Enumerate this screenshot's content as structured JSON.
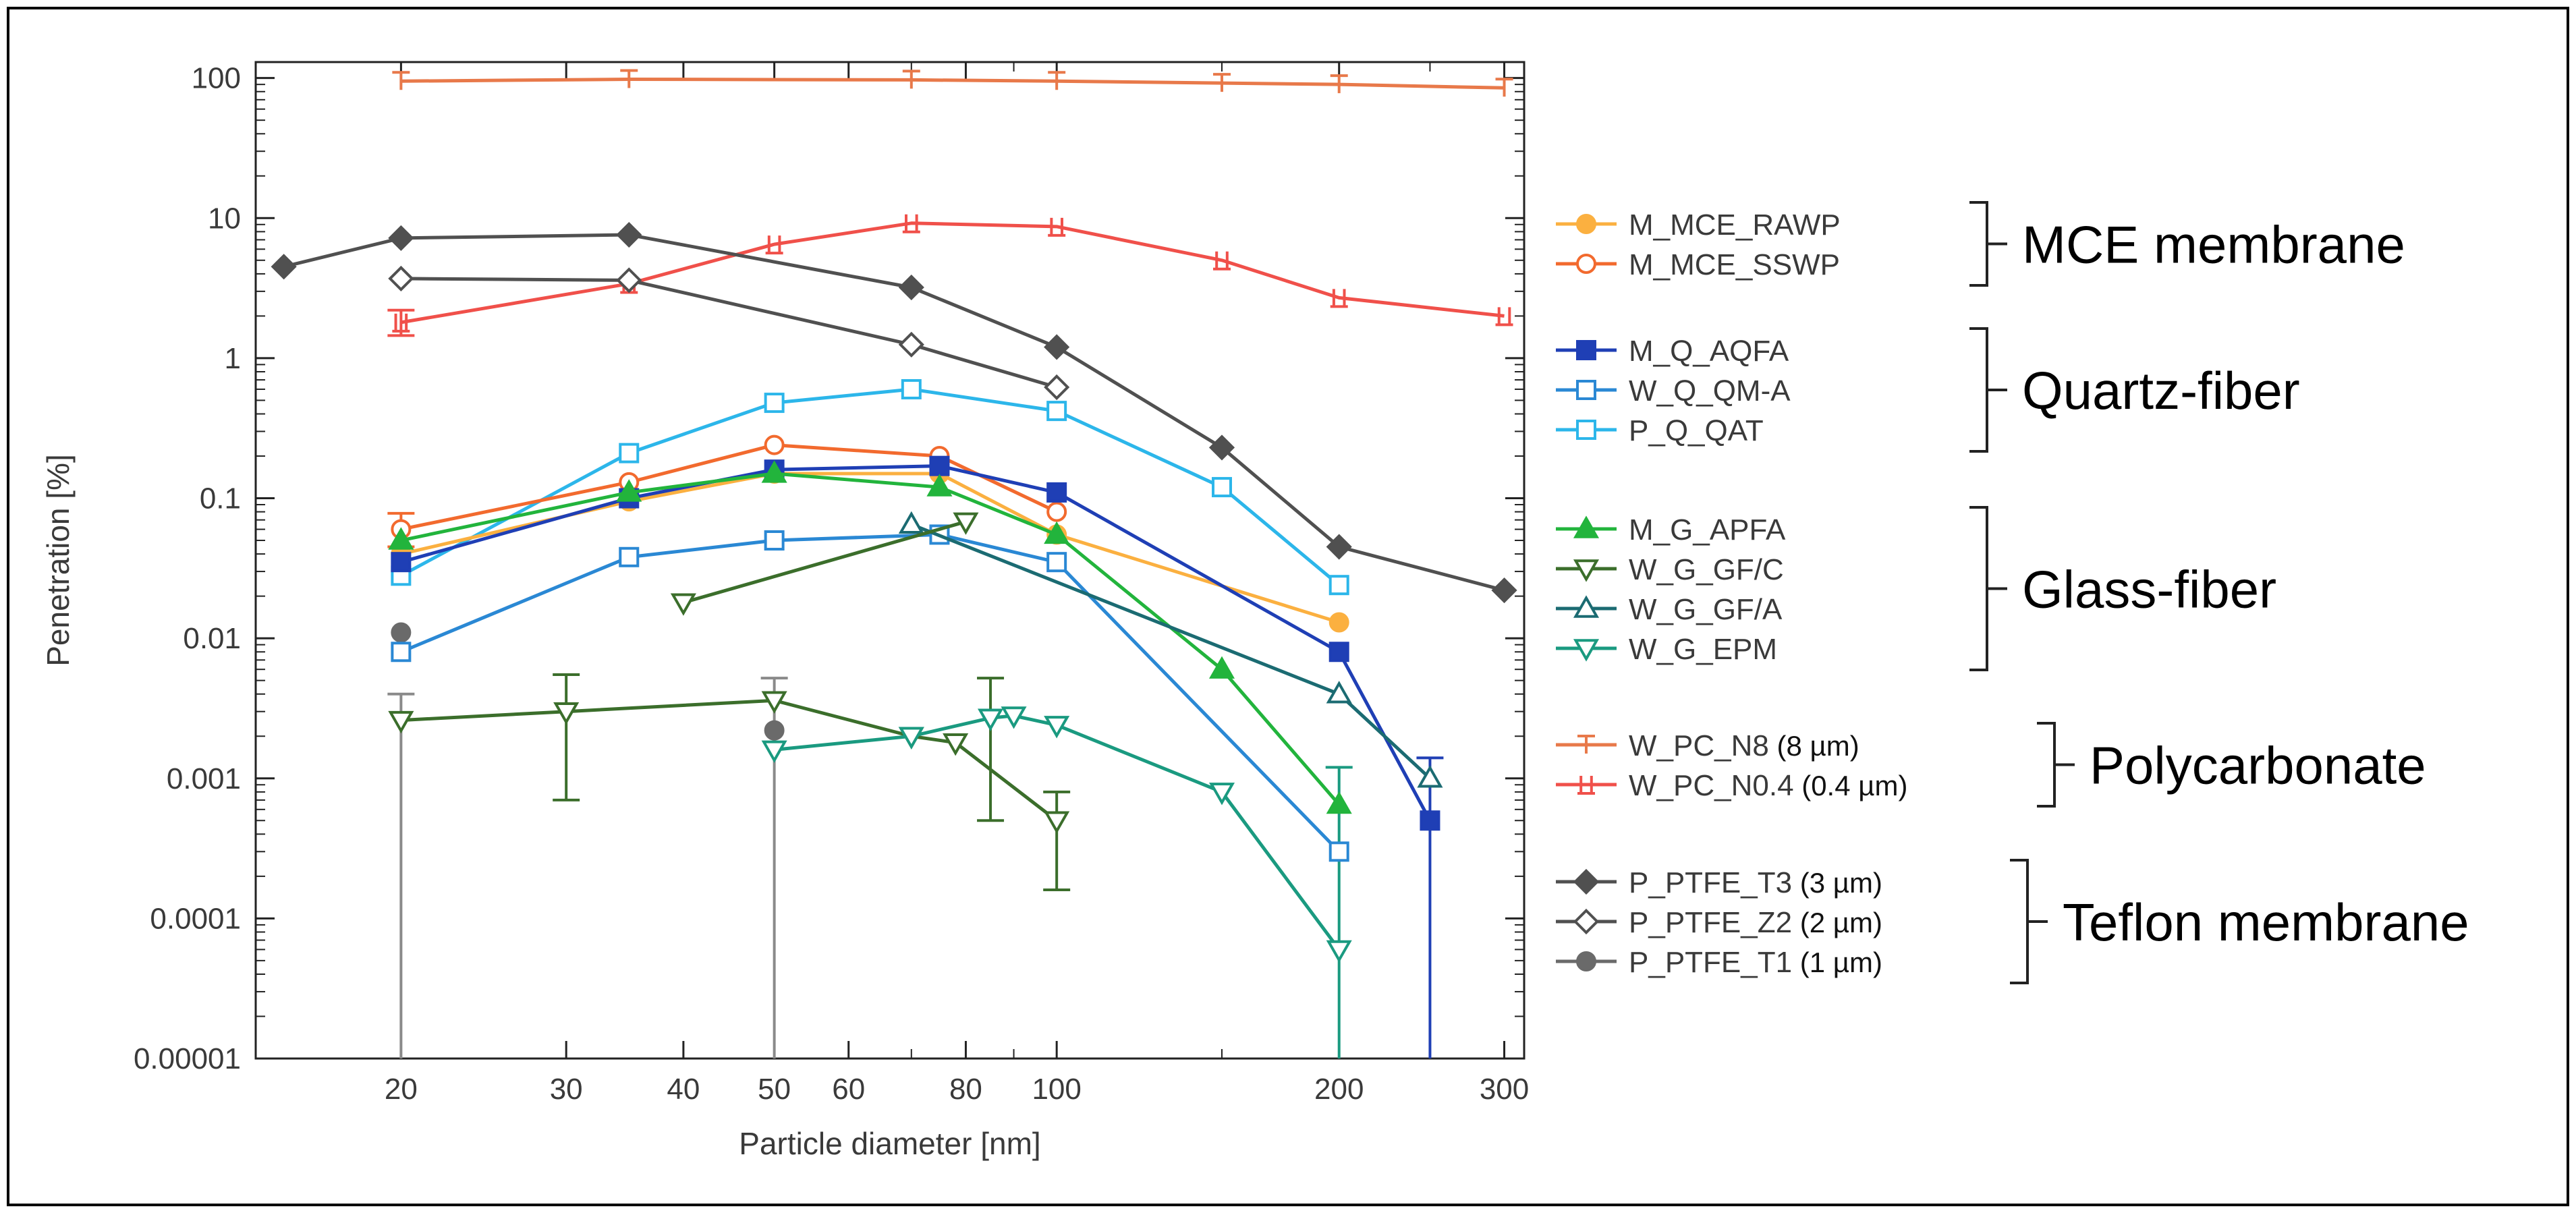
{
  "chart_data": {
    "type": "line",
    "xscale": "log",
    "yscale": "log",
    "xlabel": "Particle diameter [nm]",
    "ylabel": "Penetration [%]",
    "xlim": [
      14,
      315
    ],
    "ylim": [
      1e-05,
      130
    ],
    "xticks": [
      20,
      30,
      40,
      50,
      60,
      80,
      100,
      200,
      300
    ],
    "yticks": [
      {
        "v": 100,
        "label": "100"
      },
      {
        "v": 10,
        "label": "10"
      },
      {
        "v": 1,
        "label": "1"
      },
      {
        "v": 0.1,
        "label": "0.1"
      },
      {
        "v": 0.01,
        "label": "0.01"
      },
      {
        "v": 0.001,
        "label": "0.001"
      },
      {
        "v": 0.0001,
        "label": "0.0001"
      },
      {
        "v": 1e-05,
        "label": "0.00001"
      }
    ],
    "series": [
      {
        "name": "W_PC_N8",
        "suffix": " (8 µm)",
        "color": "#e8794a",
        "marker": "bar-t",
        "fill": "none",
        "x": [
          20,
          35,
          70,
          100,
          150,
          200,
          300
        ],
        "y": [
          95,
          98,
          97,
          95,
          92,
          90,
          85
        ]
      },
      {
        "name": "W_PC_N0.4",
        "suffix": " (0.4 µm)",
        "color": "#f0504a",
        "marker": "bar-i",
        "fill": "none",
        "x": [
          20,
          35,
          50,
          70,
          100,
          150,
          200,
          300
        ],
        "y": [
          1.8,
          3.4,
          6.5,
          9.2,
          8.7,
          5.0,
          2.7,
          2.0
        ]
      },
      {
        "name": "P_PTFE_T3",
        "suffix": " (3 µm)",
        "color": "#505050",
        "marker": "diamond",
        "fill": "#505050",
        "x": [
          15,
          20,
          35,
          70,
          100,
          150,
          200,
          300
        ],
        "y": [
          4.5,
          7.2,
          7.6,
          3.2,
          1.2,
          0.23,
          0.045,
          0.022
        ]
      },
      {
        "name": "P_PTFE_Z2",
        "suffix": " (2 µm)",
        "color": "#505050",
        "marker": "diamond",
        "fill": "#ffffff",
        "x": [
          20,
          35,
          70,
          100
        ],
        "y": [
          3.7,
          3.6,
          1.25,
          0.62
        ]
      },
      {
        "name": "P_PTFE_T1",
        "suffix": " (1 µm)",
        "color": "#6a6a6a",
        "marker": "circle",
        "fill": "#6a6a6a",
        "noline": true,
        "x": [
          20,
          50
        ],
        "y": [
          0.011,
          0.0022
        ]
      },
      {
        "name": "P_Q_QAT",
        "suffix": "",
        "color": "#2cb6ea",
        "marker": "square",
        "fill": "#ffffff",
        "x": [
          20,
          35,
          50,
          70,
          100,
          150,
          200
        ],
        "y": [
          0.028,
          0.21,
          0.48,
          0.6,
          0.42,
          0.12,
          0.024
        ]
      },
      {
        "name": "M_MCE_SSWP",
        "suffix": "",
        "color": "#f26a2e",
        "marker": "circle",
        "fill": "#ffffff",
        "x": [
          20,
          35,
          50,
          75,
          100
        ],
        "y": [
          0.06,
          0.13,
          0.24,
          0.2,
          0.08
        ]
      },
      {
        "name": "M_MCE_RAWP",
        "suffix": "",
        "color": "#fbb040",
        "marker": "circle",
        "fill": "#fbb040",
        "x": [
          20,
          35,
          50,
          75,
          100,
          200
        ],
        "y": [
          0.04,
          0.095,
          0.15,
          0.15,
          0.055,
          0.013
        ]
      },
      {
        "name": "M_Q_AQFA",
        "suffix": "",
        "color": "#1f3fb5",
        "marker": "square",
        "fill": "#1f3fb5",
        "x": [
          20,
          35,
          50,
          75,
          100,
          200,
          250
        ],
        "y": [
          0.035,
          0.1,
          0.16,
          0.17,
          0.11,
          0.008,
          0.0005
        ]
      },
      {
        "name": "M_G_APFA",
        "suffix": "",
        "color": "#22b43c",
        "marker": "triangle",
        "fill": "#22b43c",
        "x": [
          20,
          35,
          50,
          75,
          100,
          150,
          200
        ],
        "y": [
          0.05,
          0.11,
          0.15,
          0.12,
          0.055,
          0.006,
          0.00065
        ]
      },
      {
        "name": "W_Q_QM-A",
        "suffix": "",
        "color": "#2a88d4",
        "marker": "square",
        "fill": "#ffffff",
        "x": [
          20,
          35,
          50,
          75,
          100,
          200
        ],
        "y": [
          0.008,
          0.038,
          0.05,
          0.055,
          0.035,
          0.0003
        ]
      },
      {
        "name": "W_G_GF/A",
        "suffix": "",
        "color": "#1b6b72",
        "marker": "triangle",
        "fill": "#ffffff",
        "x": [
          70,
          200,
          250
        ],
        "y": [
          0.065,
          0.004,
          0.001
        ]
      },
      {
        "name": "W_G_GF/C",
        "suffix": "",
        "color": "#3b6e2b",
        "marker": "triangle-down",
        "fill": "#ffffff",
        "x": [
          20,
          30,
          50,
          70,
          78,
          100,
          40,
          80
        ],
        "y": [
          0.0026,
          0.003,
          0.0036,
          0.002,
          0.0018,
          0.0005,
          0.018,
          0.068
        ],
        "segments": [
          [
            0,
            1,
            2,
            3,
            4,
            5
          ],
          [
            6,
            7
          ]
        ]
      },
      {
        "name": "W_G_EPM",
        "suffix": "",
        "color": "#1a9a80",
        "marker": "triangle-down",
        "fill": "#ffffff",
        "x": [
          50,
          70,
          85,
          90,
          100,
          150,
          200
        ],
        "y": [
          0.0016,
          0.002,
          0.0027,
          0.0028,
          0.0024,
          0.0008,
          6e-05
        ]
      }
    ],
    "error_bars": [
      {
        "x": 20,
        "lo": 1e-05,
        "hi": 0.004,
        "color": "#8a8a8a"
      },
      {
        "x": 30,
        "lo": 0.0007,
        "hi": 0.0055,
        "color": "#3b6e2b"
      },
      {
        "x": 50,
        "lo": 1e-05,
        "hi": 0.0052,
        "color": "#8a8a8a"
      },
      {
        "x": 85,
        "lo": 0.0005,
        "hi": 0.0052,
        "color": "#3b6e2b"
      },
      {
        "x": 100,
        "lo": 0.00016,
        "hi": 0.0008,
        "color": "#3b6e2b"
      },
      {
        "x": 200,
        "lo": 1e-05,
        "hi": 0.0012,
        "color": "#1a9a80"
      },
      {
        "x": 250,
        "lo": 1e-05,
        "hi": 0.0014,
        "color": "#1f3fb5"
      },
      {
        "x": 20,
        "lo": 1.45,
        "hi": 2.2,
        "color": "#f0504a"
      },
      {
        "x": 20,
        "lo": 0.045,
        "hi": 0.078,
        "color": "#f26a2e"
      }
    ],
    "legend_groups": [
      {
        "label": "MCE membrane",
        "items": [
          "M_MCE_RAWP",
          "M_MCE_SSWP"
        ]
      },
      {
        "label": "Quartz-fiber",
        "items": [
          "M_Q_AQFA",
          "W_Q_QM-A",
          "P_Q_QAT"
        ]
      },
      {
        "label": "Glass-fiber",
        "items": [
          "M_G_APFA",
          "W_G_GF/C",
          "W_G_GF/A",
          "W_G_EPM"
        ]
      },
      {
        "label": "Polycarbonate",
        "items": [
          "W_PC_N8",
          "W_PC_N0.4"
        ]
      },
      {
        "label": "Teflon membrane",
        "items": [
          "P_PTFE_T3",
          "P_PTFE_Z2",
          "P_PTFE_T1"
        ]
      }
    ],
    "legend_placement": "right"
  }
}
